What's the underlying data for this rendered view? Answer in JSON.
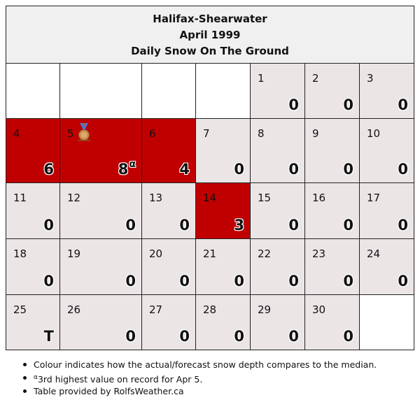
{
  "header": {
    "station": "Halifax-Shearwater",
    "month": "April 1999",
    "subtitle": "Daily Snow On The Ground"
  },
  "colors": {
    "above_median": "#c00000",
    "median": "#ebe5e6",
    "blank": "#ffffff"
  },
  "days": [
    {
      "day": "1",
      "value": "0",
      "status": "median"
    },
    {
      "day": "2",
      "value": "0",
      "status": "median"
    },
    {
      "day": "3",
      "value": "0",
      "status": "median"
    },
    {
      "day": "4",
      "value": "6",
      "status": "above"
    },
    {
      "day": "5",
      "value": "8",
      "status": "above",
      "marker": "α",
      "icon": "bronze-medal-icon"
    },
    {
      "day": "6",
      "value": "4",
      "status": "above"
    },
    {
      "day": "7",
      "value": "0",
      "status": "median"
    },
    {
      "day": "8",
      "value": "0",
      "status": "median"
    },
    {
      "day": "9",
      "value": "0",
      "status": "median"
    },
    {
      "day": "10",
      "value": "0",
      "status": "median"
    },
    {
      "day": "11",
      "value": "0",
      "status": "median"
    },
    {
      "day": "12",
      "value": "0",
      "status": "median"
    },
    {
      "day": "13",
      "value": "0",
      "status": "median"
    },
    {
      "day": "14",
      "value": "3",
      "status": "above"
    },
    {
      "day": "15",
      "value": "0",
      "status": "median"
    },
    {
      "day": "16",
      "value": "0",
      "status": "median"
    },
    {
      "day": "17",
      "value": "0",
      "status": "median"
    },
    {
      "day": "18",
      "value": "0",
      "status": "median"
    },
    {
      "day": "19",
      "value": "0",
      "status": "median"
    },
    {
      "day": "20",
      "value": "0",
      "status": "median"
    },
    {
      "day": "21",
      "value": "0",
      "status": "median"
    },
    {
      "day": "22",
      "value": "0",
      "status": "median"
    },
    {
      "day": "23",
      "value": "0",
      "status": "median"
    },
    {
      "day": "24",
      "value": "0",
      "status": "median"
    },
    {
      "day": "25",
      "value": "T",
      "status": "median"
    },
    {
      "day": "26",
      "value": "0",
      "status": "median"
    },
    {
      "day": "27",
      "value": "0",
      "status": "median"
    },
    {
      "day": "28",
      "value": "0",
      "status": "median"
    },
    {
      "day": "29",
      "value": "0",
      "status": "median"
    },
    {
      "day": "30",
      "value": "0",
      "status": "median"
    }
  ],
  "notes": {
    "colour": "Colour indicates how the actual/forecast snow depth compares to the median.",
    "record_marker": "α",
    "record_text": "3rd highest value on record for Apr 5.",
    "credit": "Table provided by RolfsWeather.ca"
  }
}
